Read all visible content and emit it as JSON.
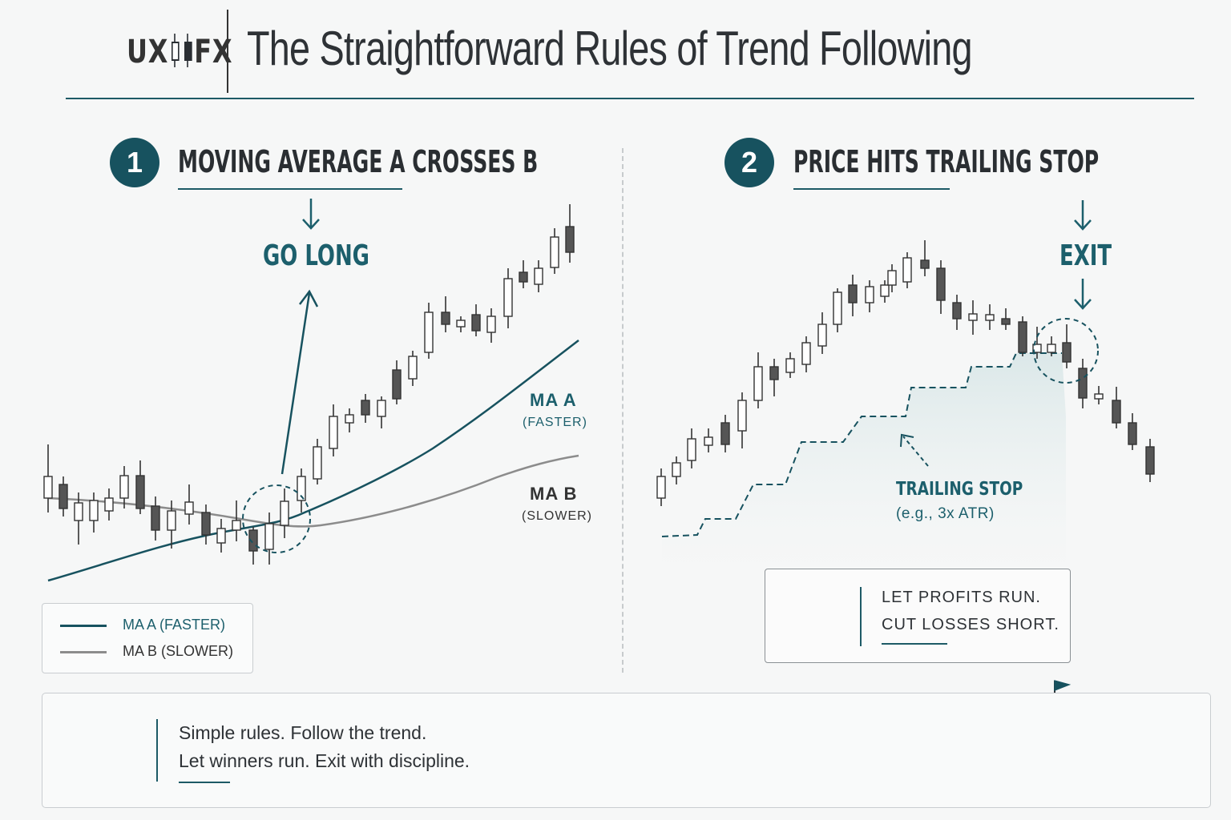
{
  "header": {
    "logo_left": "UX",
    "logo_right": "FX",
    "title": "The Straightforward Rules of Trend Following"
  },
  "step1": {
    "number": "1",
    "title": "MOVING AVERAGE A CROSSES B",
    "action": "GO LONG",
    "ma_a_label": "MA A",
    "ma_a_sub": "(FASTER)",
    "ma_b_label": "MA B",
    "ma_b_sub": "(SLOWER)"
  },
  "legend": {
    "items": [
      {
        "label": "MA A (FASTER)",
        "color": "#17525f"
      },
      {
        "label": "MA B (SLOWER)",
        "color": "#8c8c8c"
      }
    ]
  },
  "step2": {
    "number": "2",
    "title": "PRICE HITS TRAILING STOP",
    "action": "EXIT",
    "stop_label": "TRAILING STOP",
    "stop_sub": "(e.g., 3x ATR)"
  },
  "tip": {
    "line1": "LET PROFITS RUN.",
    "line2": "CUT LOSSES SHORT.",
    "icon": "lightbulb-icon"
  },
  "footer": {
    "line1": "Simple rules. Follow the trend.",
    "line2": "Let winners run. Exit with discipline.",
    "icon": "target-icon"
  },
  "colors": {
    "teal": "#17525f",
    "gray": "#8c8c8c",
    "text": "#2b2f33"
  }
}
